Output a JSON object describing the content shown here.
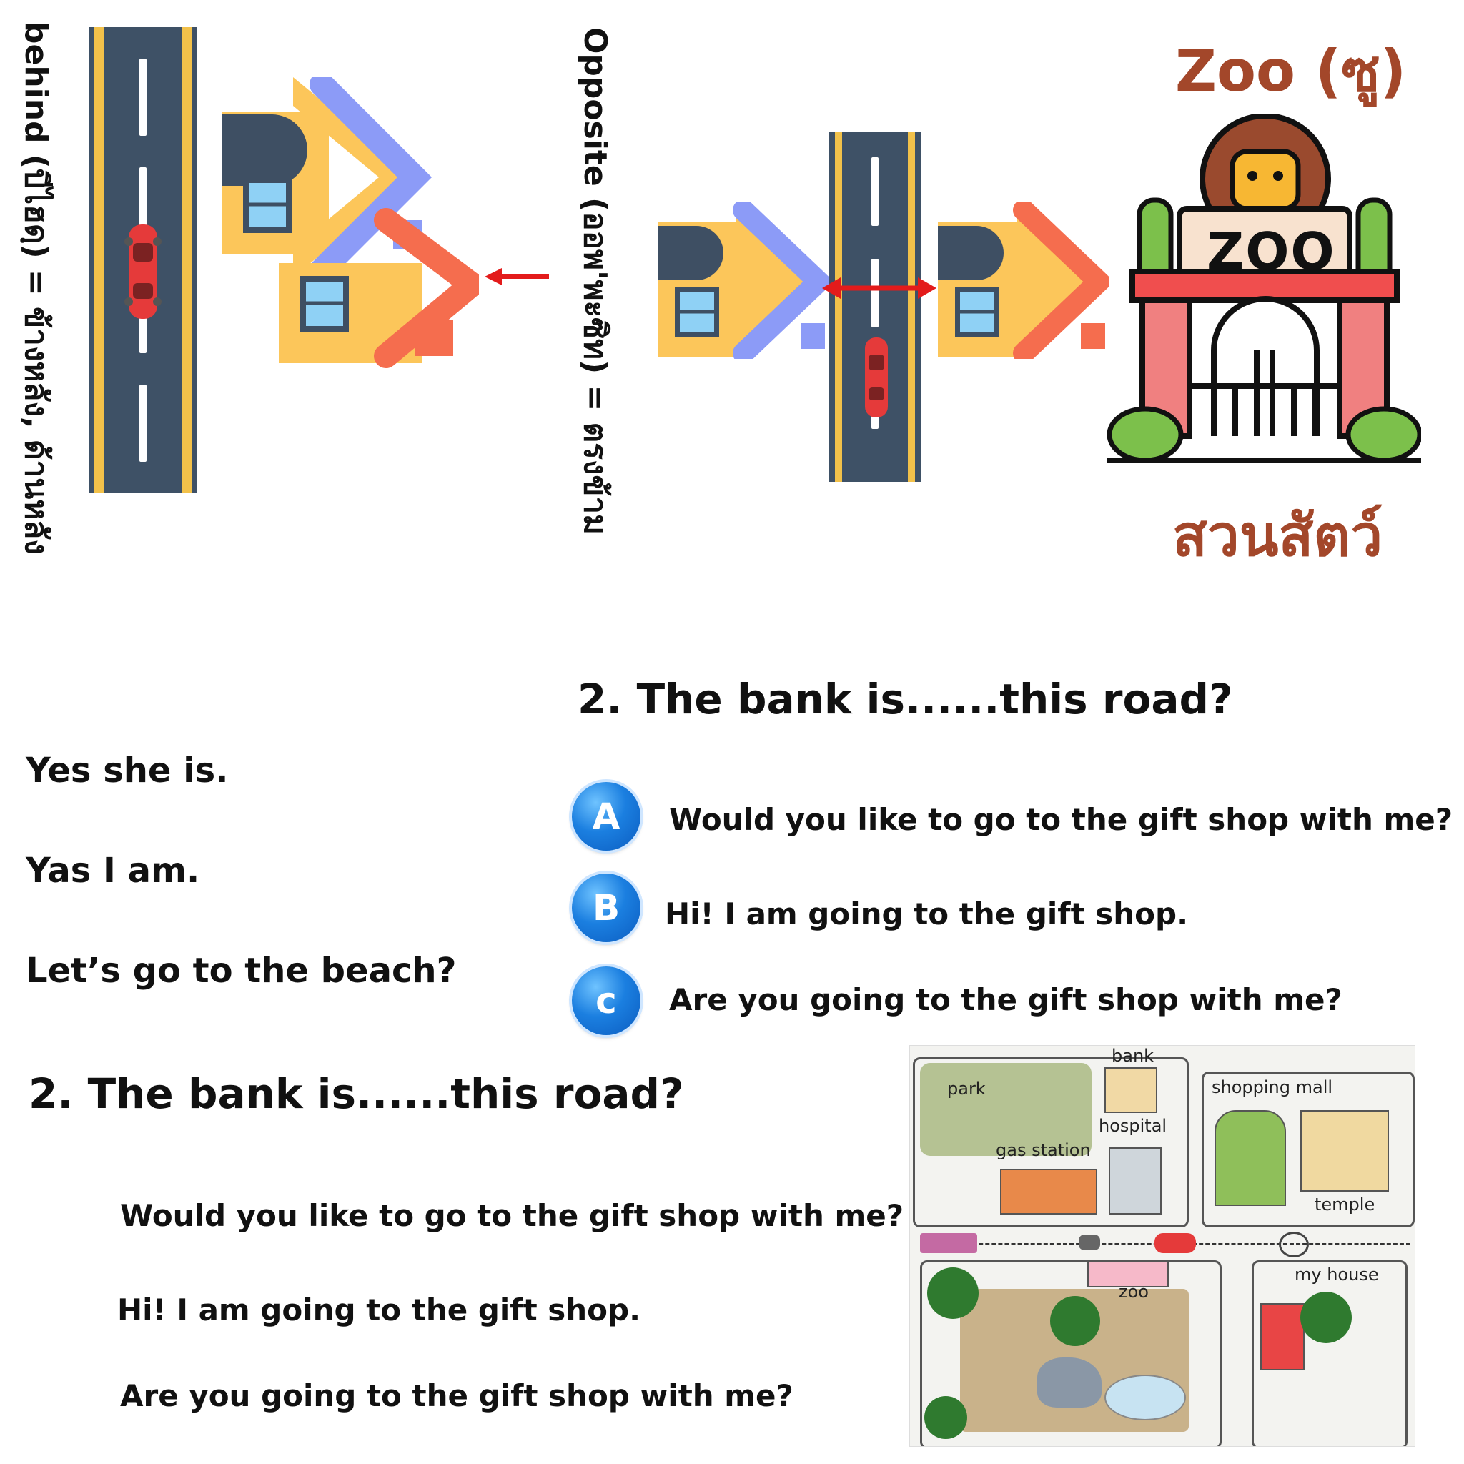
{
  "captions": {
    "behind": "behind (บีไฮดฺ) = ข้างหลัง, ด้านหลัง",
    "opposite": "Opposite (ออพ'พะซิท) = ตรงข้าม"
  },
  "zoo_card": {
    "title": "Zoo (ซู)",
    "sign": "ZOO",
    "thai": "สวนสัตว์"
  },
  "question_top": {
    "text": "2. The bank is......this road?",
    "options": [
      {
        "letter": "A",
        "text": "Would you like to go to the gift shop with me?"
      },
      {
        "letter": "B",
        "text": "Hi! I am going to the gift shop."
      },
      {
        "letter": "c",
        "text": "Are you going to the gift shop with me?"
      }
    ]
  },
  "left_answers": [
    "Yes she is.",
    "Yas I am.",
    "Let’s go to the beach?"
  ],
  "question_bottom": {
    "text": "2. The bank is......this road?",
    "options": [
      "Would you like to go to the gift shop with me?",
      "Hi! I am going to the gift shop.",
      "Are you going to the gift shop with me?"
    ]
  },
  "map": {
    "labels": {
      "park": "park",
      "bank": "bank",
      "hospital": "hospital",
      "gas_station": "gas station",
      "shopping_mall": "shopping mall",
      "temple": "temple",
      "zoo": "zoo",
      "my_house": "my house"
    }
  },
  "colors": {
    "road": "#3e5166",
    "road_edge": "#f2c14a",
    "house_body": "#fcc65a",
    "roof_blue": "#8c9bf7",
    "roof_red": "#f56d4e",
    "window": "#8fd1f5",
    "arrow": "#e31b1b",
    "zoo_title": "#a3472a",
    "option_blue": "#1b7fe0"
  }
}
